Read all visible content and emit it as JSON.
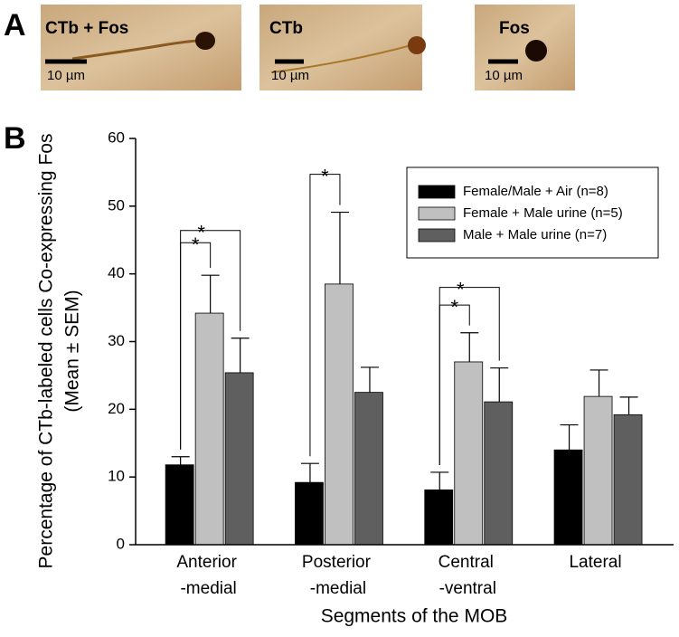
{
  "panel_a": {
    "label": "A",
    "images": [
      {
        "label": "CTb + Fos",
        "scale": "10 µm"
      },
      {
        "label": "CTb",
        "scale": "10 µm"
      },
      {
        "label": "Fos",
        "scale": "10 µm"
      }
    ]
  },
  "chart_data": {
    "type": "bar",
    "panel_label": "B",
    "ylabel": [
      "Percentage of CTb-labeled cells Co-expressing Fos",
      "(Mean ± SEM)"
    ],
    "xlabel": "Segments of the MOB",
    "categories": [
      [
        "Anterior",
        "-medial"
      ],
      [
        "Posterior",
        "-medial"
      ],
      [
        "Central",
        "-ventral"
      ],
      [
        "Lateral"
      ]
    ],
    "series": [
      {
        "name": "Female/Male + Air (n=8)",
        "color": "#000000",
        "values": [
          11.8,
          9.2,
          8.1,
          14.0
        ],
        "errors": [
          1.2,
          2.8,
          2.6,
          3.7
        ]
      },
      {
        "name": "Female + Male urine (n=5)",
        "color": "#c0c0c0",
        "values": [
          34.2,
          38.5,
          27.0,
          21.9
        ],
        "errors": [
          5.6,
          10.6,
          4.3,
          3.9
        ]
      },
      {
        "name": "Male + Male urine (n=7)",
        "color": "#5f5f5f",
        "values": [
          25.4,
          22.5,
          21.1,
          19.2
        ],
        "errors": [
          5.1,
          3.7,
          5.0,
          2.6
        ]
      }
    ],
    "significance": [
      {
        "category": 0,
        "from": 0,
        "to": 1,
        "y": 44.6,
        "label": "*"
      },
      {
        "category": 0,
        "from": 0,
        "to": 2,
        "y": 46.4,
        "label": "*"
      },
      {
        "category": 1,
        "from": 0,
        "to": 1,
        "y": 54.7,
        "label": "*"
      },
      {
        "category": 2,
        "from": 0,
        "to": 1,
        "y": 35.4,
        "label": "*"
      },
      {
        "category": 2,
        "from": 0,
        "to": 2,
        "y": 38.0,
        "label": "*"
      }
    ],
    "ylim": [
      0,
      60
    ],
    "yticks": [
      0,
      10,
      20,
      30,
      40,
      50,
      60
    ],
    "legend": "upper right"
  }
}
